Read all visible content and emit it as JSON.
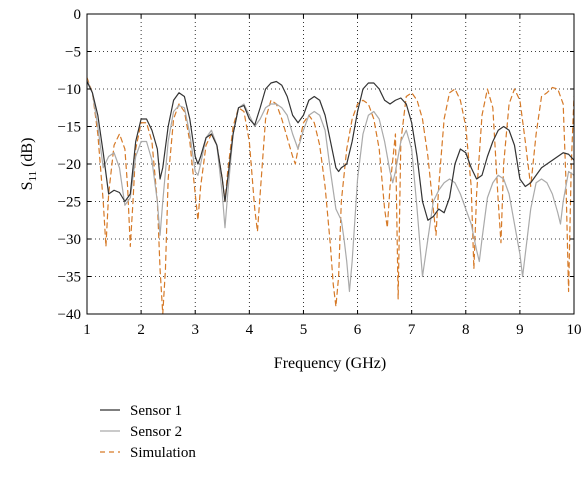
{
  "chart_data": {
    "type": "line",
    "xlabel": "Frequency (GHz)",
    "ylabel": "S11 (dB)",
    "ylabel_main": "S",
    "ylabel_sub": "11",
    "ylabel_unit": " (dB)",
    "xlim": [
      1,
      10
    ],
    "ylim": [
      -40,
      0
    ],
    "xticks": [
      1,
      2,
      3,
      4,
      5,
      6,
      7,
      8,
      9,
      10
    ],
    "xtick_labels": [
      "1",
      "2",
      "3",
      "4",
      "5",
      "6",
      "7",
      "8",
      "9",
      "10"
    ],
    "yticks": [
      0,
      -5,
      -10,
      -15,
      -20,
      -25,
      -30,
      -35,
      -40
    ],
    "ytick_labels": [
      "0",
      "−5",
      "−10",
      "−15",
      "−20",
      "−25",
      "−30",
      "−35",
      "−40"
    ],
    "grid": "dotted",
    "legend_position": "below-left",
    "series": [
      {
        "name": "Sensor 1",
        "color": "#333333",
        "dash": "solid",
        "points": [
          [
            1.0,
            -9.0
          ],
          [
            1.1,
            -10.5
          ],
          [
            1.2,
            -13.5
          ],
          [
            1.3,
            -18.5
          ],
          [
            1.4,
            -24.0
          ],
          [
            1.5,
            -23.5
          ],
          [
            1.6,
            -23.8
          ],
          [
            1.7,
            -25.0
          ],
          [
            1.8,
            -24.0
          ],
          [
            1.9,
            -17.0
          ],
          [
            2.0,
            -14.0
          ],
          [
            2.1,
            -14.0
          ],
          [
            2.2,
            -15.5
          ],
          [
            2.3,
            -18.0
          ],
          [
            2.35,
            -22.0
          ],
          [
            2.4,
            -20.5
          ],
          [
            2.5,
            -15.0
          ],
          [
            2.6,
            -11.5
          ],
          [
            2.7,
            -10.5
          ],
          [
            2.8,
            -11.0
          ],
          [
            2.9,
            -14.0
          ],
          [
            3.0,
            -19.0
          ],
          [
            3.05,
            -20.0
          ],
          [
            3.1,
            -19.0
          ],
          [
            3.2,
            -16.5
          ],
          [
            3.3,
            -16.0
          ],
          [
            3.4,
            -17.5
          ],
          [
            3.5,
            -22.0
          ],
          [
            3.55,
            -25.0
          ],
          [
            3.6,
            -22.0
          ],
          [
            3.7,
            -16.0
          ],
          [
            3.8,
            -12.5
          ],
          [
            3.9,
            -12.2
          ],
          [
            4.0,
            -14.0
          ],
          [
            4.1,
            -14.8
          ],
          [
            4.2,
            -12.5
          ],
          [
            4.3,
            -10.0
          ],
          [
            4.4,
            -9.2
          ],
          [
            4.5,
            -9.0
          ],
          [
            4.6,
            -9.5
          ],
          [
            4.7,
            -11.0
          ],
          [
            4.8,
            -13.5
          ],
          [
            4.9,
            -14.5
          ],
          [
            5.0,
            -13.5
          ],
          [
            5.1,
            -11.5
          ],
          [
            5.2,
            -11.0
          ],
          [
            5.3,
            -11.5
          ],
          [
            5.4,
            -13.5
          ],
          [
            5.5,
            -17.0
          ],
          [
            5.6,
            -20.5
          ],
          [
            5.65,
            -21.0
          ],
          [
            5.7,
            -20.5
          ],
          [
            5.8,
            -20.0
          ],
          [
            5.9,
            -17.0
          ],
          [
            6.0,
            -13.0
          ],
          [
            6.1,
            -10.0
          ],
          [
            6.2,
            -9.2
          ],
          [
            6.3,
            -9.2
          ],
          [
            6.4,
            -10.0
          ],
          [
            6.5,
            -11.5
          ],
          [
            6.6,
            -12.0
          ],
          [
            6.7,
            -11.5
          ],
          [
            6.8,
            -11.2
          ],
          [
            6.9,
            -12.0
          ],
          [
            7.0,
            -14.5
          ],
          [
            7.1,
            -19.0
          ],
          [
            7.2,
            -25.0
          ],
          [
            7.3,
            -27.5
          ],
          [
            7.4,
            -27.0
          ],
          [
            7.5,
            -26.0
          ],
          [
            7.6,
            -26.5
          ],
          [
            7.7,
            -24.5
          ],
          [
            7.8,
            -20.0
          ],
          [
            7.9,
            -18.0
          ],
          [
            8.0,
            -18.5
          ],
          [
            8.1,
            -20.5
          ],
          [
            8.2,
            -22.0
          ],
          [
            8.3,
            -21.5
          ],
          [
            8.4,
            -19.0
          ],
          [
            8.5,
            -17.0
          ],
          [
            8.6,
            -15.5
          ],
          [
            8.7,
            -15.0
          ],
          [
            8.8,
            -15.5
          ],
          [
            8.9,
            -17.5
          ],
          [
            9.0,
            -22.0
          ],
          [
            9.1,
            -23.0
          ],
          [
            9.2,
            -22.5
          ],
          [
            9.3,
            -21.5
          ],
          [
            9.4,
            -20.5
          ],
          [
            9.5,
            -20.0
          ],
          [
            9.6,
            -19.5
          ],
          [
            9.7,
            -19.0
          ],
          [
            9.8,
            -18.5
          ],
          [
            9.9,
            -18.7
          ],
          [
            10.0,
            -19.5
          ]
        ]
      },
      {
        "name": "Sensor 2",
        "color": "#aaaaaa",
        "dash": "solid",
        "points": [
          [
            1.0,
            -8.8
          ],
          [
            1.1,
            -10.5
          ],
          [
            1.2,
            -15.0
          ],
          [
            1.3,
            -20.5
          ],
          [
            1.4,
            -19.0
          ],
          [
            1.5,
            -18.5
          ],
          [
            1.6,
            -20.5
          ],
          [
            1.7,
            -25.5
          ],
          [
            1.8,
            -24.5
          ],
          [
            1.9,
            -19.0
          ],
          [
            2.0,
            -17.0
          ],
          [
            2.1,
            -17.0
          ],
          [
            2.2,
            -19.5
          ],
          [
            2.3,
            -25.0
          ],
          [
            2.35,
            -29.5
          ],
          [
            2.4,
            -25.0
          ],
          [
            2.5,
            -17.0
          ],
          [
            2.6,
            -13.0
          ],
          [
            2.7,
            -12.2
          ],
          [
            2.8,
            -12.5
          ],
          [
            2.9,
            -16.0
          ],
          [
            3.0,
            -21.0
          ],
          [
            3.05,
            -21.5
          ],
          [
            3.1,
            -20.0
          ],
          [
            3.2,
            -16.5
          ],
          [
            3.3,
            -15.5
          ],
          [
            3.4,
            -17.5
          ],
          [
            3.5,
            -24.0
          ],
          [
            3.55,
            -28.5
          ],
          [
            3.6,
            -24.0
          ],
          [
            3.7,
            -16.0
          ],
          [
            3.8,
            -12.5
          ],
          [
            3.9,
            -12.0
          ],
          [
            4.0,
            -13.5
          ],
          [
            4.1,
            -15.0
          ],
          [
            4.2,
            -14.0
          ],
          [
            4.3,
            -12.5
          ],
          [
            4.4,
            -12.0
          ],
          [
            4.5,
            -12.0
          ],
          [
            4.6,
            -12.5
          ],
          [
            4.7,
            -13.5
          ],
          [
            4.8,
            -16.0
          ],
          [
            4.9,
            -18.0
          ],
          [
            5.0,
            -15.5
          ],
          [
            5.1,
            -13.5
          ],
          [
            5.2,
            -13.0
          ],
          [
            5.3,
            -13.5
          ],
          [
            5.4,
            -15.5
          ],
          [
            5.5,
            -21.0
          ],
          [
            5.6,
            -26.0
          ],
          [
            5.7,
            -27.5
          ],
          [
            5.75,
            -30.0
          ],
          [
            5.8,
            -33.0
          ],
          [
            5.85,
            -37.0
          ],
          [
            5.9,
            -33.0
          ],
          [
            6.0,
            -22.0
          ],
          [
            6.1,
            -16.0
          ],
          [
            6.2,
            -13.5
          ],
          [
            6.3,
            -13.0
          ],
          [
            6.4,
            -14.0
          ],
          [
            6.5,
            -17.0
          ],
          [
            6.6,
            -21.0
          ],
          [
            6.65,
            -22.5
          ],
          [
            6.7,
            -21.0
          ],
          [
            6.8,
            -17.0
          ],
          [
            6.9,
            -15.5
          ],
          [
            7.0,
            -18.0
          ],
          [
            7.1,
            -26.0
          ],
          [
            7.2,
            -35.0
          ],
          [
            7.3,
            -30.0
          ],
          [
            7.4,
            -25.0
          ],
          [
            7.5,
            -23.5
          ],
          [
            7.6,
            -22.5
          ],
          [
            7.7,
            -22.0
          ],
          [
            7.8,
            -22.5
          ],
          [
            7.9,
            -24.0
          ],
          [
            8.0,
            -26.0
          ],
          [
            8.1,
            -28.0
          ],
          [
            8.2,
            -31.5
          ],
          [
            8.25,
            -33.0
          ],
          [
            8.3,
            -30.0
          ],
          [
            8.4,
            -24.5
          ],
          [
            8.5,
            -22.5
          ],
          [
            8.6,
            -21.5
          ],
          [
            8.7,
            -22.0
          ],
          [
            8.8,
            -24.0
          ],
          [
            8.9,
            -28.0
          ],
          [
            9.0,
            -32.0
          ],
          [
            9.05,
            -35.0
          ],
          [
            9.1,
            -32.0
          ],
          [
            9.2,
            -26.0
          ],
          [
            9.3,
            -22.5
          ],
          [
            9.4,
            -22.0
          ],
          [
            9.5,
            -22.5
          ],
          [
            9.6,
            -24.0
          ],
          [
            9.7,
            -26.5
          ],
          [
            9.75,
            -28.0
          ],
          [
            9.8,
            -25.0
          ],
          [
            9.9,
            -21.0
          ],
          [
            10.0,
            -21.5
          ]
        ]
      },
      {
        "name": "Simulation",
        "color": "#d67a28",
        "dash": "5,4",
        "points": [
          [
            1.0,
            -8.5
          ],
          [
            1.1,
            -10.5
          ],
          [
            1.2,
            -16.0
          ],
          [
            1.3,
            -25.0
          ],
          [
            1.35,
            -31.0
          ],
          [
            1.4,
            -24.0
          ],
          [
            1.5,
            -17.5
          ],
          [
            1.6,
            -16.0
          ],
          [
            1.7,
            -18.0
          ],
          [
            1.75,
            -23.0
          ],
          [
            1.8,
            -31.0
          ],
          [
            1.85,
            -25.0
          ],
          [
            1.9,
            -18.0
          ],
          [
            2.0,
            -14.5
          ],
          [
            2.1,
            -14.5
          ],
          [
            2.2,
            -17.0
          ],
          [
            2.3,
            -25.0
          ],
          [
            2.35,
            -34.0
          ],
          [
            2.4,
            -40.0
          ],
          [
            2.45,
            -34.0
          ],
          [
            2.5,
            -22.0
          ],
          [
            2.6,
            -14.0
          ],
          [
            2.7,
            -12.0
          ],
          [
            2.8,
            -13.0
          ],
          [
            2.9,
            -17.0
          ],
          [
            3.0,
            -24.0
          ],
          [
            3.05,
            -27.5
          ],
          [
            3.1,
            -23.0
          ],
          [
            3.2,
            -17.5
          ],
          [
            3.3,
            -16.0
          ],
          [
            3.4,
            -17.5
          ],
          [
            3.5,
            -22.0
          ],
          [
            3.55,
            -25.0
          ],
          [
            3.6,
            -21.0
          ],
          [
            3.7,
            -15.0
          ],
          [
            3.8,
            -12.5
          ],
          [
            3.9,
            -13.0
          ],
          [
            4.0,
            -17.0
          ],
          [
            4.1,
            -26.0
          ],
          [
            4.15,
            -29.0
          ],
          [
            4.2,
            -24.0
          ],
          [
            4.3,
            -14.0
          ],
          [
            4.4,
            -11.5
          ],
          [
            4.5,
            -12.0
          ],
          [
            4.6,
            -14.0
          ],
          [
            4.7,
            -16.5
          ],
          [
            4.8,
            -19.0
          ],
          [
            4.85,
            -20.0
          ],
          [
            4.9,
            -18.0
          ],
          [
            5.0,
            -14.5
          ],
          [
            5.1,
            -13.5
          ],
          [
            5.2,
            -14.5
          ],
          [
            5.3,
            -17.5
          ],
          [
            5.4,
            -23.0
          ],
          [
            5.5,
            -31.0
          ],
          [
            5.55,
            -36.0
          ],
          [
            5.6,
            -39.0
          ],
          [
            5.65,
            -35.0
          ],
          [
            5.7,
            -25.0
          ],
          [
            5.8,
            -18.0
          ],
          [
            5.9,
            -14.0
          ],
          [
            6.0,
            -12.0
          ],
          [
            6.1,
            -11.5
          ],
          [
            6.2,
            -12.0
          ],
          [
            6.3,
            -14.0
          ],
          [
            6.4,
            -18.0
          ],
          [
            6.5,
            -26.0
          ],
          [
            6.55,
            -28.5
          ],
          [
            6.6,
            -23.0
          ],
          [
            6.7,
            -16.0
          ],
          [
            6.75,
            -38.0
          ],
          [
            6.8,
            -17.0
          ],
          [
            6.9,
            -11.0
          ],
          [
            7.0,
            -10.5
          ],
          [
            7.1,
            -11.5
          ],
          [
            7.2,
            -14.0
          ],
          [
            7.3,
            -19.0
          ],
          [
            7.4,
            -26.0
          ],
          [
            7.45,
            -29.5
          ],
          [
            7.5,
            -23.0
          ],
          [
            7.6,
            -14.0
          ],
          [
            7.7,
            -10.5
          ],
          [
            7.8,
            -10.0
          ],
          [
            7.9,
            -11.5
          ],
          [
            8.0,
            -15.0
          ],
          [
            8.1,
            -23.0
          ],
          [
            8.15,
            -34.0
          ],
          [
            8.2,
            -24.0
          ],
          [
            8.3,
            -13.5
          ],
          [
            8.4,
            -10.0
          ],
          [
            8.5,
            -12.5
          ],
          [
            8.6,
            -25.0
          ],
          [
            8.65,
            -30.5
          ],
          [
            8.7,
            -20.0
          ],
          [
            8.8,
            -12.0
          ],
          [
            8.9,
            -10.0
          ],
          [
            9.0,
            -11.5
          ],
          [
            9.1,
            -17.0
          ],
          [
            9.2,
            -23.0
          ],
          [
            9.3,
            -16.0
          ],
          [
            9.4,
            -11.0
          ],
          [
            9.5,
            -10.5
          ],
          [
            9.6,
            -9.8
          ],
          [
            9.7,
            -10.0
          ],
          [
            9.8,
            -12.0
          ],
          [
            9.85,
            -22.0
          ],
          [
            9.9,
            -37.0
          ],
          [
            9.95,
            -20.0
          ],
          [
            10.0,
            -11.0
          ],
          [
            10.05,
            -9.5
          ]
        ]
      }
    ]
  }
}
